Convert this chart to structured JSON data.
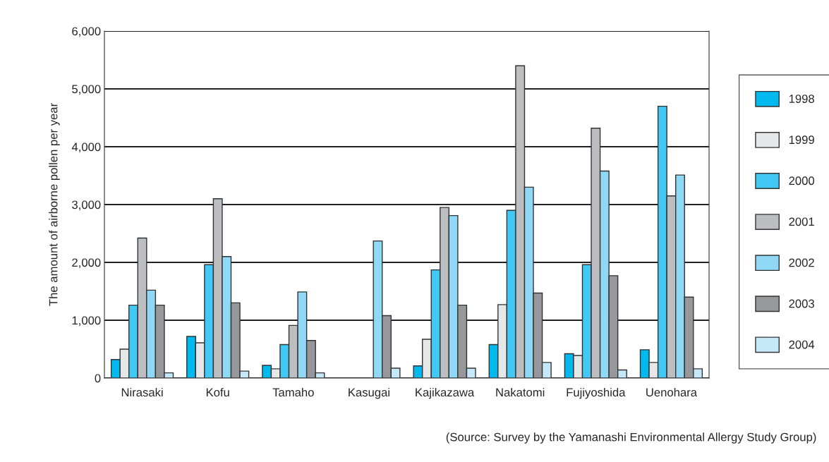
{
  "chart_data": {
    "type": "bar",
    "ylabel": "The amount of airborne pollen per year",
    "categories": [
      "Nirasaki",
      "Kofu",
      "Tamaho",
      "Kasugai",
      "Kajikazawa",
      "Nakatomi",
      "Fujiyoshida",
      "Uenohara"
    ],
    "series": [
      {
        "name": "1998",
        "color": "#00b9ef",
        "values": [
          320,
          720,
          220,
          null,
          210,
          580,
          420,
          490
        ]
      },
      {
        "name": "1999",
        "color": "#e6e7e9",
        "values": [
          500,
          610,
          160,
          null,
          670,
          1270,
          390,
          270
        ]
      },
      {
        "name": "2000",
        "color": "#41c8f4",
        "values": [
          1260,
          1960,
          580,
          null,
          1870,
          2900,
          1960,
          4700
        ]
      },
      {
        "name": "2001",
        "color": "#bcbec2",
        "values": [
          2420,
          3100,
          910,
          null,
          2950,
          5400,
          4320,
          3150
        ]
      },
      {
        "name": "2002",
        "color": "#8fd8f6",
        "values": [
          1520,
          2100,
          1490,
          2370,
          2810,
          3300,
          3580,
          3510
        ]
      },
      {
        "name": "2003",
        "color": "#97989c",
        "values": [
          1260,
          1300,
          650,
          1080,
          1260,
          1470,
          1770,
          1400
        ]
      },
      {
        "name": "2004",
        "color": "#c6e9fa",
        "values": [
          90,
          120,
          90,
          170,
          170,
          270,
          140,
          160
        ]
      }
    ],
    "ylim": [
      0,
      6000
    ],
    "yticks": [
      {
        "value": 0,
        "label": "0"
      },
      {
        "value": 1000,
        "label": "1,000"
      },
      {
        "value": 2000,
        "label": "2,000"
      },
      {
        "value": 3000,
        "label": "3,000"
      },
      {
        "value": 4000,
        "label": "4,000"
      },
      {
        "value": 5000,
        "label": "5,000"
      },
      {
        "value": 6000,
        "label": "6,000"
      }
    ],
    "grid": "y",
    "legend": "right",
    "annotations": [
      "(Source: Survey by the Yamanashi Environmental Allergy Study Group)"
    ]
  }
}
